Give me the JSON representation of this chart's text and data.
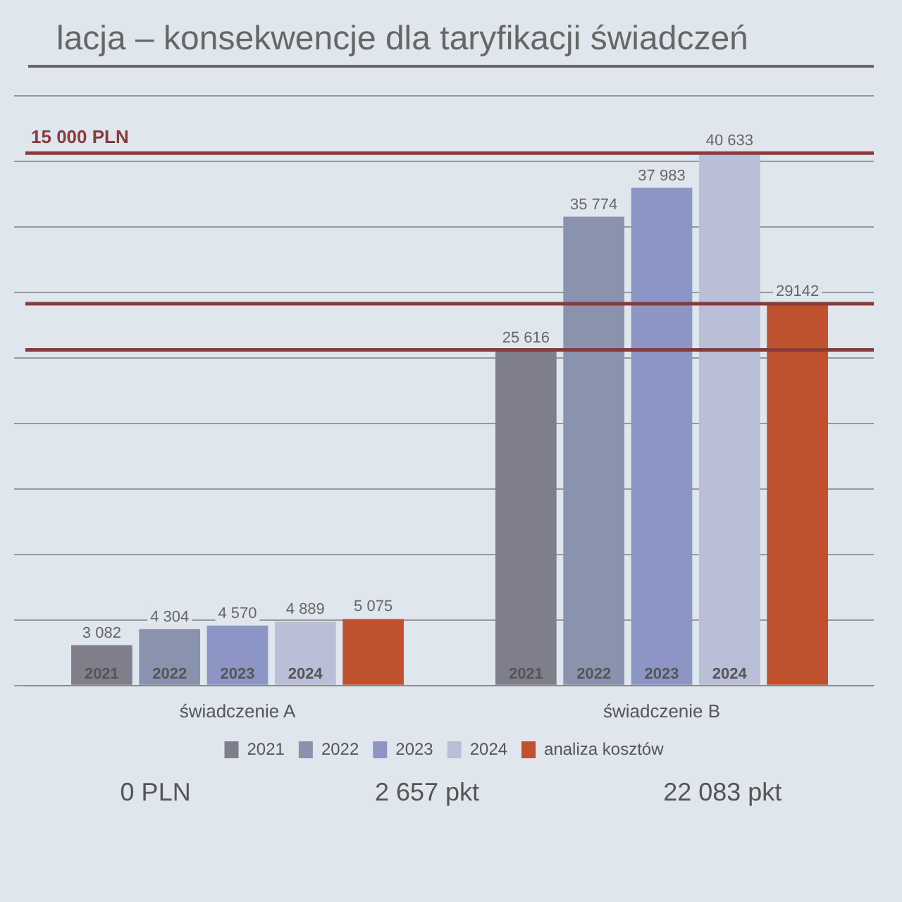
{
  "chart_data": {
    "type": "bar",
    "title": "lacja – konsekwencje dla taryfikacji świadczeń",
    "categories": [
      "świadczenie A",
      "świadczenie B"
    ],
    "series": [
      {
        "name": "2021",
        "color": "#7f7f8c",
        "values": [
          3082,
          25616
        ],
        "value_labels": [
          "3 082",
          "25 616"
        ]
      },
      {
        "name": "2022",
        "color": "#8a93ad",
        "values": [
          4304,
          35774
        ],
        "value_labels": [
          "4 304",
          "35 774"
        ]
      },
      {
        "name": "2023",
        "color": "#8b96c4",
        "values": [
          4570,
          37983
        ],
        "value_labels": [
          "4 570",
          "37 983"
        ]
      },
      {
        "name": "2024",
        "color": "#b8bfd6",
        "values": [
          4889,
          40633
        ],
        "value_labels": [
          "4 889",
          "40 633"
        ]
      },
      {
        "name": "analiza kosztów",
        "color": "#c0512f",
        "values": [
          5075,
          29142
        ],
        "value_labels": [
          "5 075",
          "29142"
        ]
      }
    ],
    "ref_lines": [
      {
        "axis": "y",
        "value": 40633,
        "label": "15 000 PLN",
        "color": "#8b3a3a"
      },
      {
        "axis": "y",
        "value": 29142,
        "color": "#8b3a3a"
      },
      {
        "axis": "y",
        "value": 25616,
        "color": "#8b3a3a"
      }
    ],
    "annotations": [
      "0 PLN",
      "2 657 pkt",
      "22 083 pkt"
    ],
    "grid": "y",
    "legend": "bottom",
    "tick_labels": "x"
  }
}
